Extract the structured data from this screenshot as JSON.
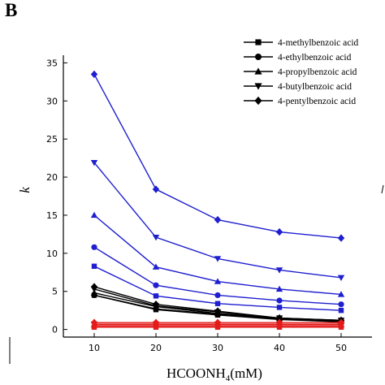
{
  "panel_label": "B",
  "colors": {
    "black_group": "#000000",
    "blue_group": "#1f1fd0",
    "red_group": "#e31b1b",
    "axis": "#000000"
  },
  "chart_data": {
    "type": "line",
    "title": "",
    "xlabel": "HCOONH4(mM)",
    "xlabel_main": "HCOONH",
    "xlabel_sub": "4",
    "xlabel_suffix": "(mM)",
    "ylabel": "k",
    "x": [
      10,
      20,
      30,
      40,
      50
    ],
    "xlim": [
      5,
      55
    ],
    "ylim": [
      -1,
      36
    ],
    "xticks": [
      10,
      20,
      30,
      40,
      50
    ],
    "yticks": [
      0,
      5,
      10,
      15,
      20,
      25,
      30,
      35
    ],
    "grid": false,
    "legend_position": "top-right",
    "legend": [
      {
        "name": "4-methylbenzoic acid",
        "marker": "square"
      },
      {
        "name": "4-ethylbenzoic acid",
        "marker": "circle"
      },
      {
        "name": "4-propylbenzoic acid",
        "marker": "triangle-up"
      },
      {
        "name": "4-butylbenzoic acid",
        "marker": "triangle-down"
      },
      {
        "name": "4-pentylbenzoic acid",
        "marker": "diamond"
      }
    ],
    "series": [
      {
        "color_group": "blue",
        "marker": "diamond",
        "values": [
          33.5,
          18.4,
          14.4,
          12.8,
          12.0
        ]
      },
      {
        "color_group": "blue",
        "marker": "triangle-down",
        "values": [
          21.9,
          12.1,
          9.3,
          7.8,
          6.8
        ]
      },
      {
        "color_group": "blue",
        "marker": "triangle-up",
        "values": [
          15.0,
          8.2,
          6.3,
          5.3,
          4.6
        ]
      },
      {
        "color_group": "blue",
        "marker": "circle",
        "values": [
          10.8,
          5.8,
          4.5,
          3.8,
          3.3
        ]
      },
      {
        "color_group": "blue",
        "marker": "square",
        "values": [
          8.3,
          4.4,
          3.4,
          2.9,
          2.5
        ]
      },
      {
        "color_group": "black",
        "marker": "diamond",
        "values": [
          5.6,
          3.3,
          2.4,
          1.5,
          1.2
        ]
      },
      {
        "color_group": "black",
        "marker": "triangle-down",
        "values": [
          5.3,
          3.1,
          2.3,
          1.5,
          1.2
        ]
      },
      {
        "color_group": "black",
        "marker": "triangle-up",
        "values": [
          4.8,
          3.0,
          2.1,
          1.5,
          1.1
        ]
      },
      {
        "color_group": "black",
        "marker": "circle",
        "values": [
          4.5,
          2.7,
          2.0,
          1.4,
          1.1
        ]
      },
      {
        "color_group": "black",
        "marker": "square",
        "values": [
          4.5,
          2.6,
          1.9,
          1.3,
          1.0
        ]
      },
      {
        "color_group": "red",
        "marker": "diamond",
        "values": [
          0.9,
          0.9,
          0.9,
          0.9,
          0.9
        ]
      },
      {
        "color_group": "red",
        "marker": "triangle-down",
        "values": [
          0.7,
          0.7,
          0.7,
          0.7,
          0.7
        ]
      },
      {
        "color_group": "red",
        "marker": "triangle-up",
        "values": [
          0.6,
          0.6,
          0.6,
          0.6,
          0.6
        ]
      },
      {
        "color_group": "red",
        "marker": "circle",
        "values": [
          0.4,
          0.4,
          0.4,
          0.4,
          0.4
        ]
      },
      {
        "color_group": "red",
        "marker": "square",
        "values": [
          0.3,
          0.3,
          0.3,
          0.3,
          0.3
        ]
      }
    ]
  }
}
